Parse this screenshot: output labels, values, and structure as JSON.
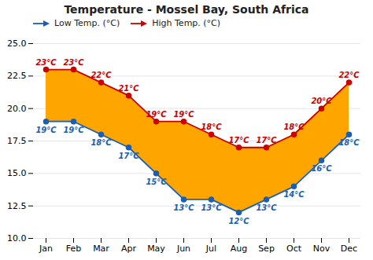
{
  "chart_data": {
    "type": "line",
    "title": "Temperature - Mossel Bay, South Africa",
    "categories": [
      "Jan",
      "Feb",
      "Mar",
      "Apr",
      "May",
      "Jun",
      "Jul",
      "Aug",
      "Sep",
      "Oct",
      "Nov",
      "Dec"
    ],
    "series": [
      {
        "name": "Low Temp. (°C)",
        "color": "#1a5fb4",
        "values": [
          19,
          19,
          18,
          17,
          15,
          13,
          13,
          12,
          13,
          14,
          16,
          18
        ],
        "value_labels": [
          "19°C",
          "19°C",
          "18°C",
          "17°C",
          "15°C",
          "13°C",
          "13°C",
          "12°C",
          "13°C",
          "14°C",
          "16°C",
          "18°C"
        ]
      },
      {
        "name": "High Temp. (°C)",
        "color": "#cc0000",
        "values": [
          23,
          23,
          22,
          21,
          19,
          19,
          18,
          17,
          17,
          18,
          20,
          22
        ],
        "value_labels": [
          "23°C",
          "23°C",
          "22°C",
          "21°C",
          "19°C",
          "19°C",
          "18°C",
          "17°C",
          "17°C",
          "18°C",
          "20°C",
          "22°C"
        ]
      }
    ],
    "fill_color": "#ffa500",
    "marker": "circle",
    "ylim": [
      10.0,
      25.0
    ],
    "yticks": [
      {
        "value": 10,
        "label": "10.0"
      },
      12.5,
      {
        "value": 15,
        "label": "15.0"
      },
      17.5,
      {
        "value": 20,
        "label": "20.0"
      },
      22.5,
      {
        "value": 25,
        "label": "25.0"
      }
    ],
    "grid": true,
    "legend": "top-left",
    "data_labels": true
  }
}
